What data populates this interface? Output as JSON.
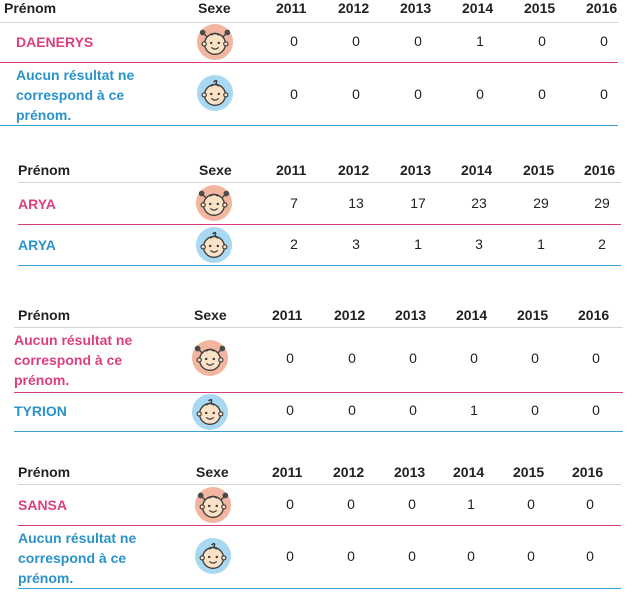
{
  "headers": {
    "name": "Prénom",
    "sex": "Sexe",
    "years": [
      "2011",
      "2012",
      "2013",
      "2014",
      "2015",
      "2016"
    ]
  },
  "tables": [
    {
      "rows": [
        {
          "sex": "girl",
          "name": "DAENERYS",
          "values": [
            "0",
            "0",
            "0",
            "1",
            "0",
            "0"
          ]
        },
        {
          "sex": "boy",
          "name": "Aucun résultat ne correspond à ce prénom.",
          "values": [
            "0",
            "0",
            "0",
            "0",
            "0",
            "0"
          ]
        }
      ]
    },
    {
      "rows": [
        {
          "sex": "girl",
          "name": "ARYA",
          "values": [
            "7",
            "13",
            "17",
            "23",
            "29",
            "29"
          ]
        },
        {
          "sex": "boy",
          "name": "ARYA",
          "values": [
            "2",
            "3",
            "1",
            "3",
            "1",
            "2"
          ]
        }
      ]
    },
    {
      "rows": [
        {
          "sex": "girl",
          "name": "Aucun résultat ne correspond à ce prénom.",
          "values": [
            "0",
            "0",
            "0",
            "0",
            "0",
            "0"
          ]
        },
        {
          "sex": "boy",
          "name": "TYRION",
          "values": [
            "0",
            "0",
            "0",
            "1",
            "0",
            "0"
          ]
        }
      ]
    },
    {
      "rows": [
        {
          "sex": "girl",
          "name": "SANSA",
          "values": [
            "0",
            "0",
            "0",
            "1",
            "0",
            "0"
          ]
        },
        {
          "sex": "boy",
          "name": "Aucun résultat ne correspond à ce prénom.",
          "values": [
            "0",
            "0",
            "0",
            "0",
            "0",
            "0"
          ]
        }
      ]
    }
  ],
  "colors": {
    "girl": "#dc3f80",
    "boy": "#2a93c9",
    "girl_bg": "#f2b6a0",
    "boy_bg": "#a9d9f2"
  },
  "icons": {
    "girl": "baby-girl-icon",
    "boy": "baby-boy-icon"
  }
}
